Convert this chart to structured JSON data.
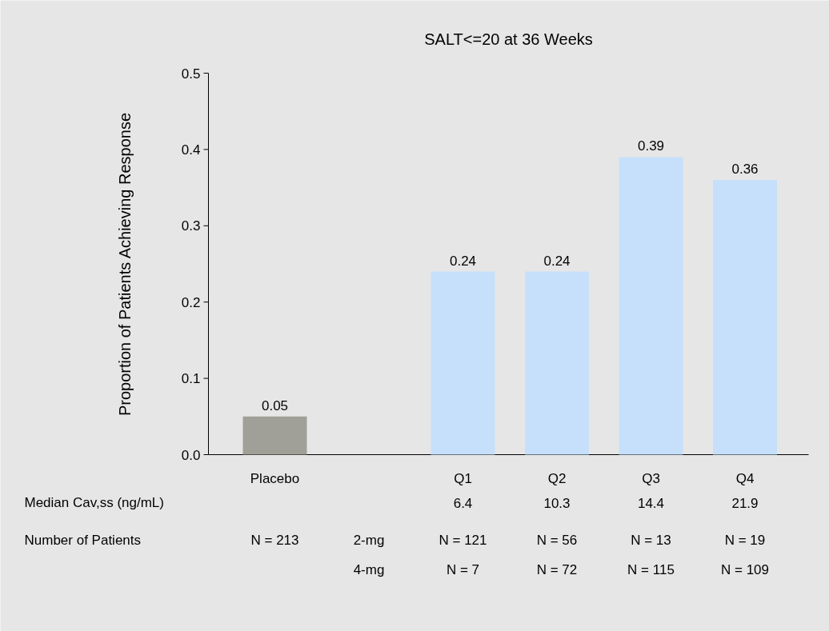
{
  "chart_data": {
    "type": "bar",
    "title": "SALT<=20 at 36 Weeks",
    "ylabel": "Proportion of Patients Achieving Response",
    "categories": [
      "Placebo",
      null,
      "Q1",
      "Q2",
      "Q3",
      "Q4"
    ],
    "values": [
      0.05,
      null,
      0.24,
      0.24,
      0.39,
      0.36
    ],
    "colors": [
      "#a09f98",
      "#c6e0fb",
      "#c6e0fb",
      "#c6e0fb",
      "#c6e0fb",
      "#c6e0fb"
    ],
    "data_labels": true,
    "ylim": [
      0,
      0.5
    ],
    "yticks": [
      {
        "value": 0,
        "label": "0.0"
      },
      {
        "value": 0.1,
        "label": "0.1"
      },
      {
        "value": 0.2,
        "label": "0.2"
      },
      {
        "value": 0.3,
        "label": "0.3"
      },
      {
        "value": 0.4,
        "label": "0.4"
      },
      {
        "value": 0.5,
        "label": "0.5"
      }
    ],
    "annotations": [
      "Median Cav,ss (ng/mL)",
      "6.4",
      "10.3",
      "14.4",
      "21.9",
      "Number of Patients",
      "N = 213",
      "2-mg",
      "N = 121",
      "N = 56",
      "N = 13",
      "N = 19",
      "4-mg",
      "N = 7",
      "N = 72",
      "N = 115",
      "N = 109"
    ]
  }
}
